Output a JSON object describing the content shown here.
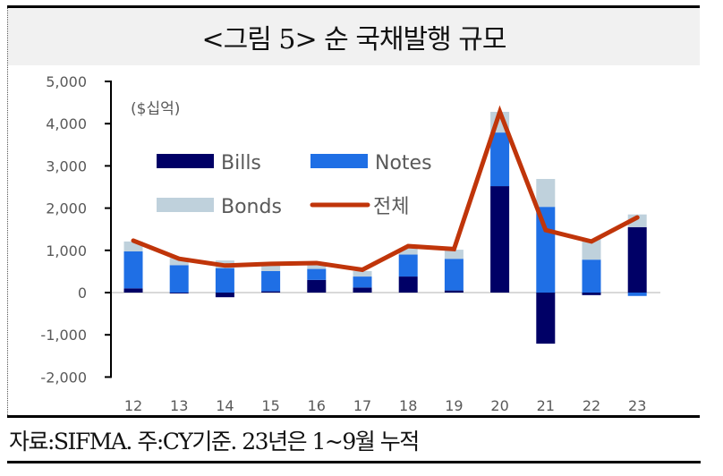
{
  "title": "<그림 5> 순 국채발행 규모",
  "source_note": "자료:SIFMA. 주:CY기준. 23년은 1~9월 누적",
  "colors": {
    "bills": "#000066",
    "notes": "#1f6fe5",
    "bonds": "#bfd1dc",
    "total": "#c0350a",
    "axis": "#000000",
    "zero_line": "#d9d9d9",
    "title_bg": "#f1f1f1"
  },
  "chart_data": {
    "type": "bar",
    "stacked": true,
    "title": "<그림 5> 순 국채발행 규모",
    "unit_label": "($십억)",
    "xlabel": "",
    "ylabel": "",
    "ylim": [
      -2000,
      5000
    ],
    "yticks": [
      5000,
      4000,
      3000,
      2000,
      1000,
      0,
      -1000,
      -2000
    ],
    "ytick_labels": [
      "5,000",
      "4,000",
      "3,000",
      "2,000",
      "1,000",
      "0",
      "-1,000",
      "-2,000"
    ],
    "categories": [
      "12",
      "13",
      "14",
      "15",
      "16",
      "17",
      "18",
      "19",
      "20",
      "21",
      "22",
      "23"
    ],
    "series": [
      {
        "name": "Bills",
        "kind": "bar",
        "values": [
          100,
          -20,
          -110,
          30,
          300,
          120,
          380,
          50,
          2520,
          -1210,
          -60,
          1550
        ]
      },
      {
        "name": "Notes",
        "kind": "bar",
        "values": [
          875,
          650,
          580,
          480,
          260,
          260,
          520,
          750,
          1270,
          2030,
          780,
          -80
        ]
      },
      {
        "name": "Bonds",
        "kind": "bar",
        "values": [
          235,
          170,
          180,
          130,
          90,
          130,
          150,
          215,
          490,
          660,
          490,
          300
        ]
      },
      {
        "name": "전체",
        "kind": "line",
        "values": [
          1230,
          800,
          640,
          680,
          700,
          540,
          1100,
          1030,
          4280,
          1480,
          1210,
          1780
        ]
      }
    ],
    "legend": [
      "Bills",
      "Notes",
      "Bonds",
      "전체"
    ],
    "legend_position": "upper-left inside",
    "grid": false,
    "source": "자료:SIFMA. 주:CY기준. 23년은 1~9월 누적"
  }
}
